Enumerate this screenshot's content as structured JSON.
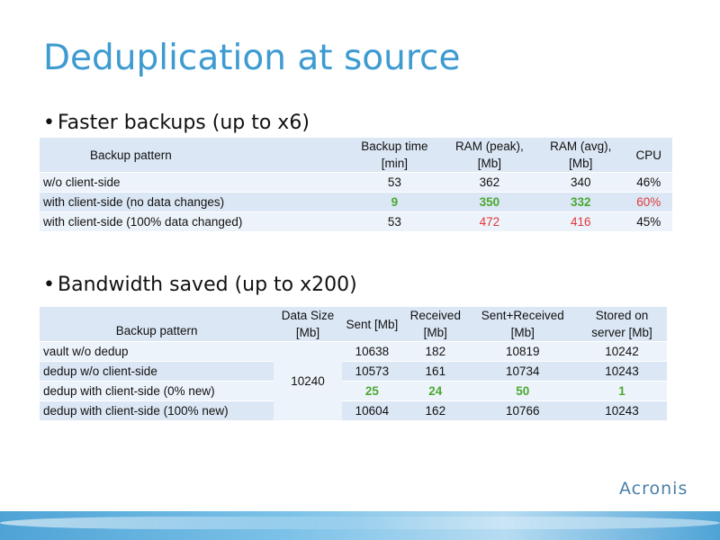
{
  "title": "Deduplication at source",
  "bullet1": "Faster backups (up to x6)",
  "bullet2": "Bandwidth saved (up to x200)",
  "table1": {
    "headers": [
      "Backup pattern",
      "Backup time [min]",
      "RAM (peak), [Mb]",
      "RAM (avg), [Mb]",
      "CPU"
    ],
    "rows": [
      [
        "w/o client-side",
        "53",
        "362",
        "340",
        "46%"
      ],
      [
        "with client-side (no data changes)",
        "9",
        "350",
        "332",
        "60%"
      ],
      [
        "with client-side (100% data changed)",
        "53",
        "472",
        "416",
        "45%"
      ]
    ]
  },
  "table2": {
    "headers": [
      "Backup pattern",
      "Data Size [Mb]",
      "Sent [Mb]",
      "Received [Mb]",
      "Sent+Received [Mb]",
      "Stored on server [Mb]"
    ],
    "data_size": "10240",
    "rows": [
      [
        "vault w/o dedup",
        "10638",
        "182",
        "10819",
        "10242"
      ],
      [
        "dedup w/o client-side",
        "10573",
        "161",
        "10734",
        "10243"
      ],
      [
        "dedup with client-side (0% new)",
        "25",
        "24",
        "50",
        "1"
      ],
      [
        "dedup with client-side (100% new)",
        "10604",
        "162",
        "10766",
        "10243"
      ]
    ]
  },
  "logo": "Acronis",
  "colors": {
    "title": "#3d9bd1",
    "highlight_green": "#4aa832",
    "highlight_red": "#e0383c",
    "table_dark": "#dbe7f4",
    "table_light": "#edf3fa"
  }
}
